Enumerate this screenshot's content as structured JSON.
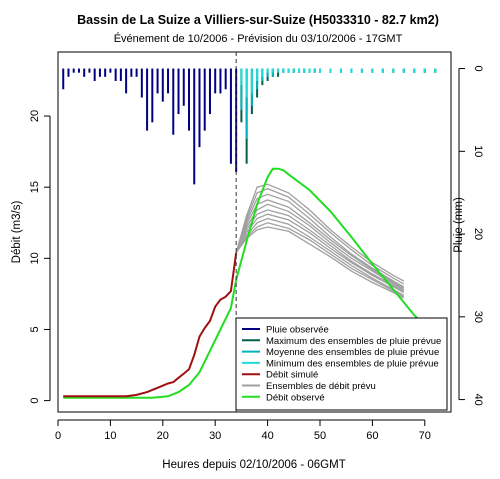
{
  "chart_data": {
    "type": "line",
    "title": "Bassin de La Suize a Villiers-sur-Suize (H5033310 - 82.7 km2)",
    "subtitle": "Événement de 10/2006 - Prévision du 03/10/2006 - 17GMT",
    "xlabel": "Heures depuis 02/10/2006 - 06GMT",
    "ylabel": "Débit (m3/s)",
    "y2label": "Pluie (mm)",
    "xlim": [
      0,
      75
    ],
    "ylim": [
      -0.8,
      24.5
    ],
    "y2lim": [
      41.5,
      -2
    ],
    "xticks": [
      "0",
      "10",
      "20",
      "30",
      "40",
      "50",
      "60",
      "70"
    ],
    "yticks": [
      "0",
      "5",
      "10",
      "15",
      "20"
    ],
    "y2ticks": [
      "0",
      "10",
      "20",
      "30",
      "40"
    ],
    "forecast_time": 34,
    "legend": {
      "position": "bottom-right",
      "entries": [
        {
          "label": "Pluie observée",
          "color": "#000080"
        },
        {
          "label": "Maximum des ensembles de pluie prévue",
          "color": "#005f46"
        },
        {
          "label": "Moyenne des ensembles de pluie prévue",
          "color": "#00b4be"
        },
        {
          "label": "Minimum des ensembles de pluie prévue",
          "color": "#1edcdc"
        },
        {
          "label": "Débit simulé",
          "color": "#a01010"
        },
        {
          "label": "Ensembles de débit prévu",
          "color": "#a0a0a0"
        },
        {
          "label": "Débit observé",
          "color": "#22dd22"
        }
      ]
    },
    "rain_observed": {
      "color": "#000080",
      "x": [
        1,
        2,
        3,
        4,
        5,
        6,
        7,
        8,
        9,
        10,
        11,
        12,
        13,
        14,
        15,
        16,
        17,
        18,
        19,
        20,
        21,
        22,
        23,
        24,
        25,
        26,
        27,
        28,
        29,
        30,
        31,
        32,
        33,
        34
      ],
      "values": [
        2.5,
        1.0,
        0.5,
        0.5,
        1.0,
        0.5,
        1.5,
        1.0,
        1.0,
        0.5,
        1.5,
        1.5,
        3.0,
        1.0,
        1.0,
        3.5,
        7.5,
        6.5,
        3.0,
        4.0,
        3.0,
        8.0,
        5.5,
        4.5,
        7.5,
        14.0,
        9.5,
        7.5,
        5.5,
        3.0,
        3.0,
        2.5,
        11.5,
        12.5
      ]
    },
    "rain_forecast": {
      "x": [
        35,
        36,
        37,
        38,
        39,
        40,
        41,
        42,
        43,
        44,
        45,
        46,
        47,
        48,
        49,
        50,
        52,
        54,
        56,
        58,
        60,
        62,
        64,
        66,
        68,
        70,
        72
      ],
      "maximum": [
        6.5,
        11.5,
        5.5,
        3.5,
        2.0,
        1.5,
        1.0,
        1.0,
        0.5,
        0.5,
        0.5,
        0.5,
        0.5,
        0.5,
        0.5,
        0.5,
        0.5,
        0.5,
        0.5,
        0.5,
        0.5,
        0.5,
        0.5,
        0.5,
        0.5,
        0.5,
        0.5
      ],
      "mean": [
        5.0,
        8.5,
        4.5,
        2.5,
        1.5,
        1.0,
        1.0,
        0.5,
        0.5,
        0.5,
        0.5,
        0.5,
        0.5,
        0.5,
        0.5,
        0.5,
        0.5,
        0.5,
        0.5,
        0.5,
        0.5,
        0.5,
        0.5,
        0.5,
        0.5,
        0.5,
        0.5
      ],
      "minimum": [
        2.0,
        3.5,
        3.0,
        1.5,
        1.0,
        0.5,
        0.5,
        0.5,
        0.5,
        0.5,
        0.5,
        0.5,
        0.5,
        0.5,
        0.5,
        0.5,
        0.5,
        0.5,
        0.5,
        0.5,
        0.5,
        0.5,
        0.5,
        0.5,
        0.5,
        0.5,
        0.5
      ],
      "colors": {
        "maximum": "#005f46",
        "mean": "#00b4be",
        "minimum": "#1edcdc"
      }
    },
    "series": [
      {
        "name": "Débit observé",
        "color": "#22dd22",
        "x": [
          1,
          6,
          10,
          14,
          18,
          21,
          23,
          25,
          27,
          29,
          31,
          33,
          34,
          36,
          38,
          40,
          41,
          42,
          43,
          44,
          48,
          52,
          56,
          60,
          64,
          68,
          72
        ],
        "values": [
          0.2,
          0.2,
          0.2,
          0.2,
          0.2,
          0.3,
          0.6,
          1.1,
          2.0,
          3.5,
          5.0,
          6.5,
          8.5,
          11.2,
          13.8,
          15.7,
          16.3,
          16.3,
          16.2,
          15.9,
          14.8,
          13.3,
          11.5,
          9.6,
          7.8,
          6.0,
          4.6
        ]
      },
      {
        "name": "Débit simulé",
        "color": "#a01010",
        "x": [
          1,
          5,
          9,
          13,
          15,
          17,
          19,
          21,
          22,
          23,
          24,
          25,
          26,
          27,
          28,
          29,
          30,
          31,
          32,
          33,
          34
        ],
        "values": [
          0.3,
          0.3,
          0.3,
          0.3,
          0.4,
          0.6,
          0.9,
          1.2,
          1.3,
          1.6,
          1.9,
          2.2,
          3.2,
          4.5,
          5.1,
          5.6,
          6.6,
          7.1,
          7.3,
          7.7,
          10.4
        ]
      }
    ],
    "ensembles": {
      "name": "Ensembles de débit prévu",
      "color": "#a0a0a0",
      "x": [
        34,
        36,
        38,
        40,
        44,
        48,
        52,
        56,
        60,
        64,
        66
      ],
      "members": [
        [
          10.4,
          13.0,
          15.0,
          15.2,
          14.6,
          13.4,
          12.0,
          10.8,
          9.7,
          8.8,
          8.4
        ],
        [
          10.4,
          12.8,
          14.6,
          14.9,
          14.3,
          13.1,
          11.8,
          10.6,
          9.5,
          8.6,
          8.2
        ],
        [
          10.4,
          12.6,
          14.2,
          14.5,
          14.0,
          12.8,
          11.5,
          10.3,
          9.3,
          8.4,
          8.0
        ],
        [
          10.4,
          12.4,
          13.8,
          14.1,
          13.6,
          12.5,
          11.3,
          10.2,
          9.2,
          8.3,
          7.9
        ],
        [
          10.4,
          12.2,
          13.4,
          13.8,
          13.3,
          12.3,
          11.1,
          10.0,
          9.1,
          8.2,
          7.8
        ],
        [
          10.4,
          12.0,
          13.1,
          13.4,
          13.0,
          12.0,
          10.9,
          9.8,
          8.9,
          8.1,
          7.7
        ],
        [
          10.4,
          11.8,
          12.8,
          13.1,
          12.7,
          11.8,
          10.7,
          9.7,
          8.8,
          8.0,
          7.6
        ],
        [
          10.4,
          11.6,
          12.5,
          12.8,
          12.4,
          11.5,
          10.5,
          9.5,
          8.6,
          7.8,
          7.4
        ],
        [
          10.4,
          11.5,
          12.2,
          12.5,
          12.1,
          11.3,
          10.3,
          9.3,
          8.5,
          7.7,
          7.3
        ],
        [
          10.4,
          11.4,
          12.0,
          12.2,
          11.9,
          11.0,
          10.1,
          9.1,
          8.3,
          7.6,
          7.2
        ]
      ]
    }
  }
}
